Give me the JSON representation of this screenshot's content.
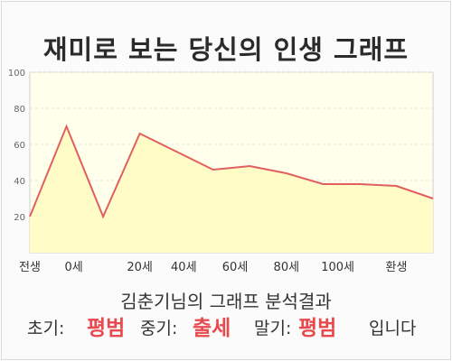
{
  "title": "재미로 보는 당신의 인생 그래프",
  "chart_data": {
    "type": "area",
    "title": "재미로 보는 당신의 인생 그래프",
    "xlabel": "",
    "ylabel": "",
    "x": [
      0,
      1,
      2,
      3,
      4,
      5,
      6,
      7,
      8,
      9,
      10,
      11
    ],
    "values": [
      20,
      70,
      20,
      66,
      56,
      46,
      48,
      44,
      38,
      38,
      37,
      30
    ],
    "xtick_positions": [
      0,
      1.2,
      3.0,
      4.2,
      5.6,
      7.0,
      8.4,
      10.0
    ],
    "xtick_labels": [
      "전생",
      "0세",
      "20세",
      "40세",
      "60세",
      "80세",
      "100세",
      "환생"
    ],
    "yticks": [
      20,
      40,
      60,
      80,
      100
    ],
    "ylim": [
      0,
      100
    ],
    "grid": true,
    "colors": {
      "line": "#e06060",
      "fill": "#fffcc8",
      "plot_bg": "#ffffec",
      "grid": "#e4e4d8"
    }
  },
  "subtitle": "김춘기님의 그래프 분석결과",
  "result": {
    "early_label": "초기:",
    "early_value": "평범",
    "middle_label": "중기:",
    "middle_value": "출세",
    "late_label": "말기:",
    "late_value": "평범",
    "suffix": "입니다"
  },
  "highlight_color": "#e8494c"
}
